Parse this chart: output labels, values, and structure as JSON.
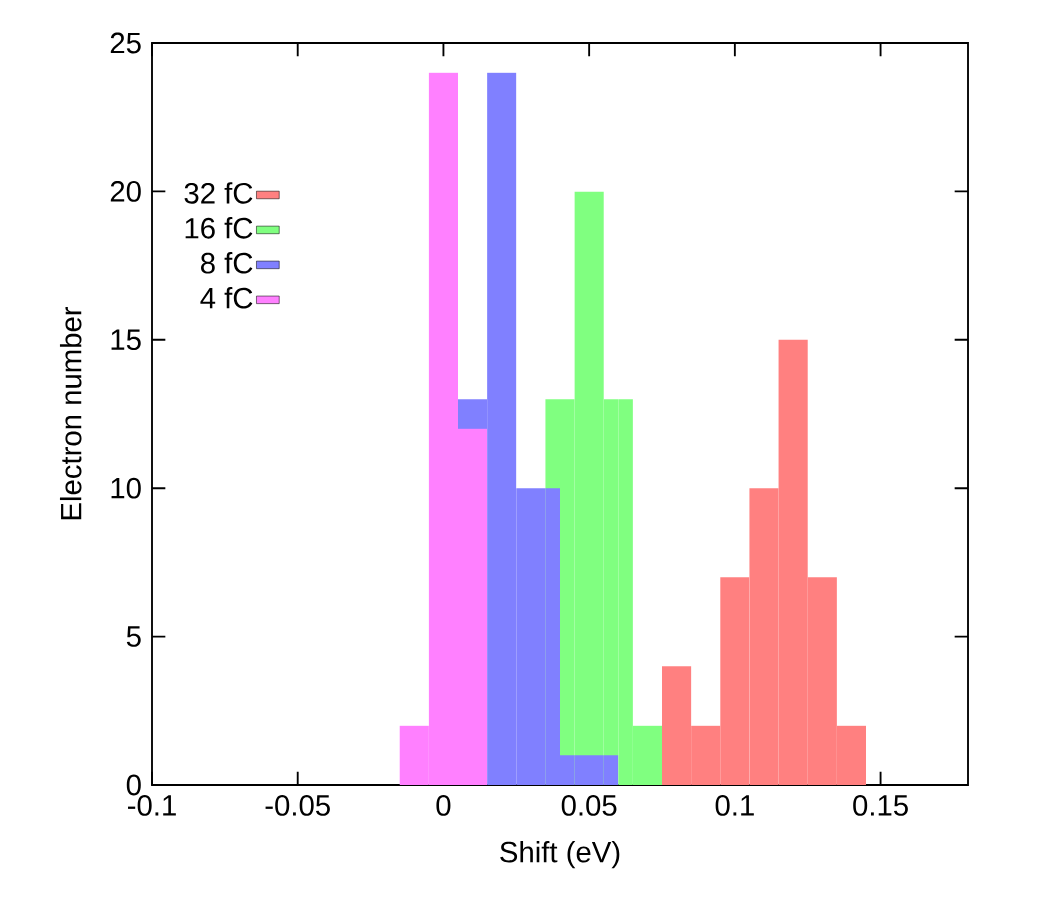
{
  "chart_data": {
    "type": "histogram",
    "xlabel": "Shift (eV)",
    "ylabel": "Electron number",
    "xlim": [
      -0.1,
      0.18
    ],
    "ylim": [
      0,
      25
    ],
    "xticks": [
      {
        "value": -0.1,
        "label": "-0.1"
      },
      {
        "value": -0.05,
        "label": "-0.05"
      },
      {
        "value": 0,
        "label": "0"
      },
      {
        "value": 0.05,
        "label": "0.05"
      },
      {
        "value": 0.1,
        "label": "0.1"
      },
      {
        "value": 0.15,
        "label": "0.15"
      }
    ],
    "yticks": [
      {
        "value": 0,
        "label": "0"
      },
      {
        "value": 5,
        "label": "5"
      },
      {
        "value": 10,
        "label": "10"
      },
      {
        "value": 15,
        "label": "15"
      },
      {
        "value": 20,
        "label": "20"
      },
      {
        "value": 25,
        "label": "25"
      }
    ],
    "legend": "top left",
    "grid": false,
    "bins": [
      -0.015,
      -0.005,
      0.005,
      0.015,
      0.025,
      0.035,
      0.04,
      0.045,
      0.055,
      0.06,
      0.065,
      0.075,
      0.085,
      0.095,
      0.105,
      0.115,
      0.125,
      0.135,
      0.145
    ],
    "series": [
      {
        "name": "32 fC",
        "color": "#ff8080",
        "values": [
          null,
          null,
          null,
          null,
          null,
          null,
          null,
          null,
          null,
          null,
          null,
          4,
          2,
          7,
          10,
          15,
          7,
          2
        ]
      },
      {
        "name": "16 fC",
        "color": "#80ff80",
        "values": [
          null,
          null,
          null,
          null,
          null,
          13,
          13,
          20,
          13,
          13,
          2,
          null,
          null,
          null,
          null,
          null,
          null,
          null
        ]
      },
      {
        "name": "8 fC",
        "color": "#8080ff",
        "values": [
          null,
          null,
          13,
          24,
          10,
          10,
          1,
          1,
          1,
          null,
          null,
          null,
          null,
          null,
          null,
          null,
          null,
          null
        ]
      },
      {
        "name": "4 fC",
        "color": "#ff80ff",
        "values": [
          2,
          24,
          12,
          null,
          null,
          null,
          null,
          null,
          null,
          null,
          null,
          null,
          null,
          null,
          null,
          null,
          null,
          null
        ]
      }
    ]
  }
}
